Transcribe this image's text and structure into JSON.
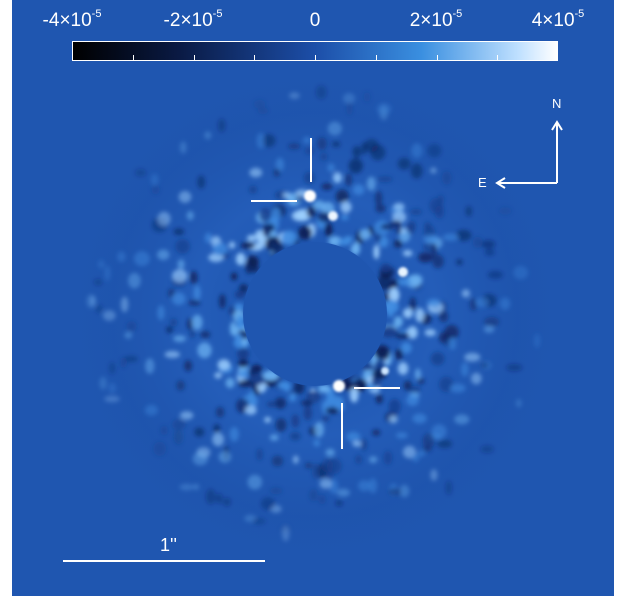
{
  "colorbar": {
    "labels": [
      {
        "mantissa": "-4×10",
        "exp": "-5"
      },
      {
        "mantissa": "-2×10",
        "exp": "-5"
      },
      {
        "mantissa": "0",
        "exp": ""
      },
      {
        "mantissa": "2×10",
        "exp": "-5"
      },
      {
        "mantissa": "4×10",
        "exp": "-5"
      }
    ],
    "colors": [
      "#000000",
      "#0a1a44",
      "#1c4ea8",
      "#3a8fe0",
      "#bfe0ff",
      "#ffffff"
    ]
  },
  "compass": {
    "north": "N",
    "east": "E"
  },
  "scale_bar": {
    "label": "1''"
  },
  "background_color": "#1f56b0"
}
